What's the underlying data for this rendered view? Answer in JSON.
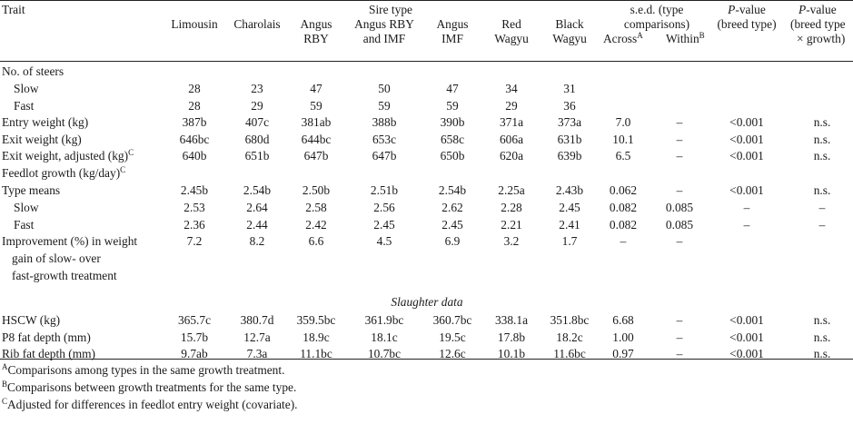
{
  "table": {
    "headers": {
      "trait": "Trait",
      "sire_type_group": "Sire type",
      "sire_types": [
        {
          "line1": "Limousin",
          "line2": ""
        },
        {
          "line1": "Charolais",
          "line2": ""
        },
        {
          "line1": "Angus",
          "line2": "RBY"
        },
        {
          "line1": "Angus RBY",
          "line2": "and IMF"
        },
        {
          "line1": "Angus",
          "line2": "IMF"
        },
        {
          "line1": "Red",
          "line2": "Wagyu"
        },
        {
          "line1": "Black",
          "line2": "Wagyu"
        }
      ],
      "sed_line1": "s.e.d. (type",
      "sed_line2": "comparisons)",
      "across": "Across",
      "across_sup": "A",
      "within": "Within",
      "within_sup": "B",
      "pbreed_italic": "P",
      "pbreed_line1": "-value",
      "pbreed_line2": "(breed type)",
      "pint_italic": "P",
      "pint_line1": "-value",
      "pint_line2": "(breed type",
      "pint_line3": "× growth)"
    },
    "rows": [
      {
        "label": "No. of steers",
        "indent": false,
        "values": [
          "",
          "",
          "",
          "",
          "",
          "",
          ""
        ],
        "across": "",
        "within": "",
        "p": "",
        "pi": ""
      },
      {
        "label": "Slow",
        "indent": true,
        "values": [
          "28",
          "23",
          "47",
          "50",
          "47",
          "34",
          "31"
        ],
        "across": "",
        "within": "",
        "p": "",
        "pi": ""
      },
      {
        "label": "Fast",
        "indent": true,
        "values": [
          "28",
          "29",
          "59",
          "59",
          "59",
          "29",
          "36"
        ],
        "across": "",
        "within": "",
        "p": "",
        "pi": ""
      },
      {
        "label": "Entry weight (kg)",
        "indent": false,
        "values": [
          "387b",
          "407c",
          "381ab",
          "388b",
          "390b",
          "371a",
          "373a"
        ],
        "across": "7.0",
        "within": "–",
        "p": "<0.001",
        "pi": "n.s."
      },
      {
        "label": "Exit weight (kg)",
        "indent": false,
        "values": [
          "646bc",
          "680d",
          "644bc",
          "653c",
          "658c",
          "606a",
          "631b"
        ],
        "across": "10.1",
        "within": "–",
        "p": "<0.001",
        "pi": "n.s."
      },
      {
        "label": "Exit weight, adjusted (kg)",
        "sup": "C",
        "indent": false,
        "values": [
          "640b",
          "651b",
          "647b",
          "647b",
          "650b",
          "620a",
          "639b"
        ],
        "across": "6.5",
        "within": "–",
        "p": "<0.001",
        "pi": "n.s."
      },
      {
        "label": "Feedlot growth (kg/day)",
        "sup": "C",
        "indent": false,
        "values": [
          "",
          "",
          "",
          "",
          "",
          "",
          ""
        ],
        "across": "",
        "within": "",
        "p": "",
        "pi": ""
      },
      {
        "label": "Type means",
        "indent": false,
        "values": [
          "2.45b",
          "2.54b",
          "2.50b",
          "2.51b",
          "2.54b",
          "2.25a",
          "2.43b"
        ],
        "across": "0.062",
        "within": "–",
        "p": "<0.001",
        "pi": "n.s."
      },
      {
        "label": "Slow",
        "indent": true,
        "values": [
          "2.53",
          "2.64",
          "2.58",
          "2.56",
          "2.62",
          "2.28",
          "2.45"
        ],
        "across": "0.082",
        "within": "0.085",
        "p": "–",
        "pi": "–"
      },
      {
        "label": "Fast",
        "indent": true,
        "values": [
          "2.36",
          "2.44",
          "2.42",
          "2.45",
          "2.45",
          "2.21",
          "2.41"
        ],
        "across": "0.082",
        "within": "0.085",
        "p": "–",
        "pi": "–"
      },
      {
        "label": "Improvement (%) in weight",
        "label2": "gain of slow- over",
        "label3": "fast-growth treatment",
        "indent": false,
        "values": [
          "7.2",
          "8.2",
          "6.6",
          "4.5",
          "6.9",
          "3.2",
          "1.7"
        ],
        "across": "–",
        "within": "–",
        "p": "",
        "pi": ""
      }
    ],
    "section_title": "Slaughter data",
    "slaughter_rows": [
      {
        "label": "HSCW (kg)",
        "values": [
          "365.7c",
          "380.7d",
          "359.5bc",
          "361.9bc",
          "360.7bc",
          "338.1a",
          "351.8bc"
        ],
        "across": "6.68",
        "within": "–",
        "p": "<0.001",
        "pi": "n.s."
      },
      {
        "label": "P8 fat depth (mm)",
        "values": [
          "15.7b",
          "12.7a",
          "18.9c",
          "18.1c",
          "19.5c",
          "17.8b",
          "18.2c"
        ],
        "across": "1.00",
        "within": "–",
        "p": "<0.001",
        "pi": "n.s."
      },
      {
        "label": "Rib fat depth (mm)",
        "values": [
          "9.7ab",
          "7.3a",
          "11.1bc",
          "10.7bc",
          "12.6c",
          "10.1b",
          "11.6bc"
        ],
        "across": "0.97",
        "within": "–",
        "p": "<0.001",
        "pi": "n.s."
      }
    ],
    "footnotes": [
      {
        "sup": "A",
        "text": "Comparisons among types in the same growth treatment."
      },
      {
        "sup": "B",
        "text": "Comparisons between growth treatments for the same type."
      },
      {
        "sup": "C",
        "text": "Adjusted for differences in feedlot entry weight (covariate)."
      }
    ]
  }
}
